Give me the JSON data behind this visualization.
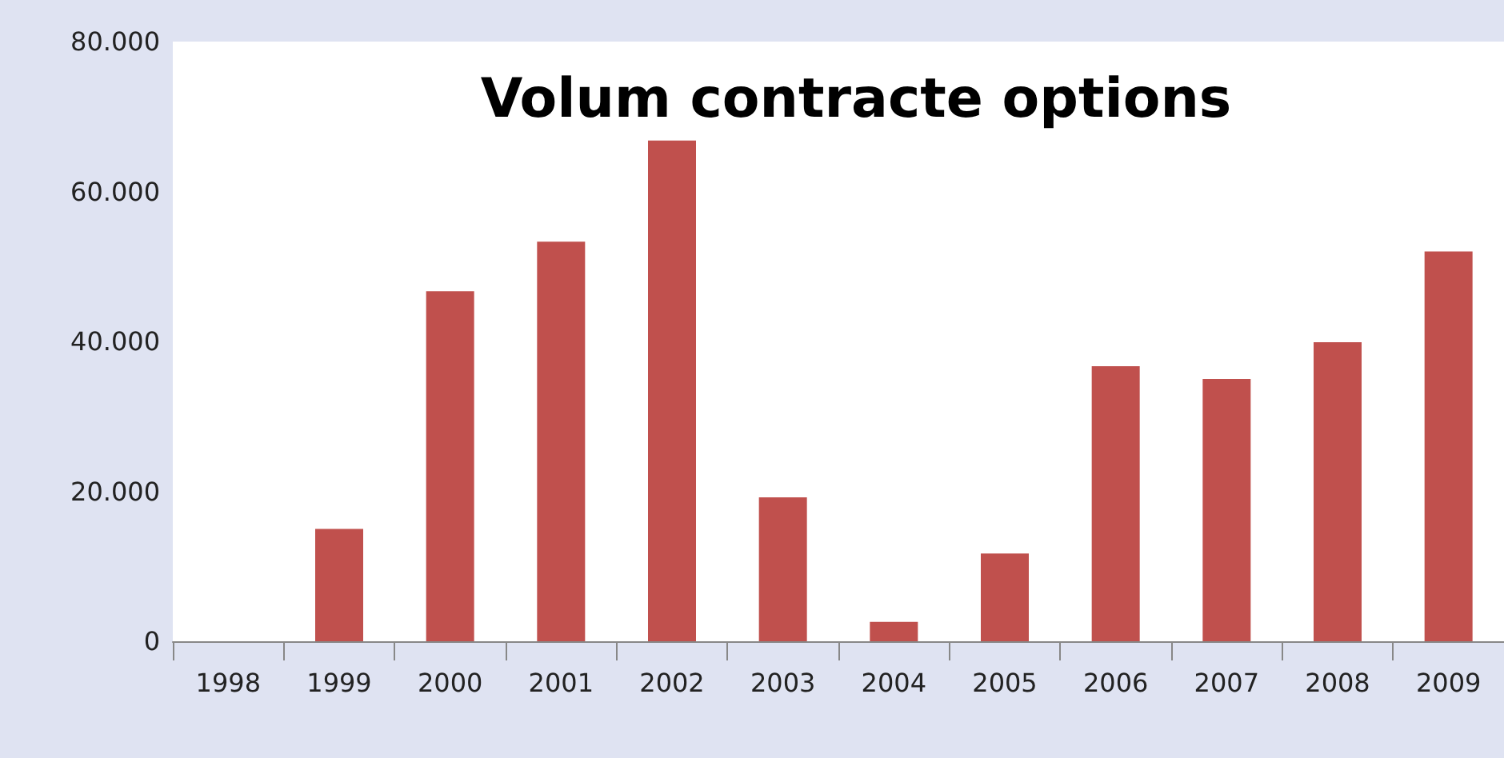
{
  "chart_data": {
    "type": "bar",
    "title": "Volum contracte options",
    "categories": [
      "1998",
      "1999",
      "2000",
      "2001",
      "2002",
      "2003",
      "2004",
      "2005",
      "2006",
      "2007",
      "2008",
      "2009"
    ],
    "values": [
      0,
      15000,
      46700,
      53300,
      66800,
      19200,
      2600,
      11700,
      36700,
      35000,
      39900,
      52000
    ],
    "color": "#c0504d",
    "ylim": [
      0,
      80000
    ],
    "yticks": [
      {
        "value": 0,
        "label": "0"
      },
      {
        "value": 20000,
        "label": "20.000"
      },
      {
        "value": 40000,
        "label": "40.000"
      },
      {
        "value": 60000,
        "label": "60.000"
      },
      {
        "value": 80000,
        "label": "80.000"
      }
    ],
    "grid": false
  }
}
